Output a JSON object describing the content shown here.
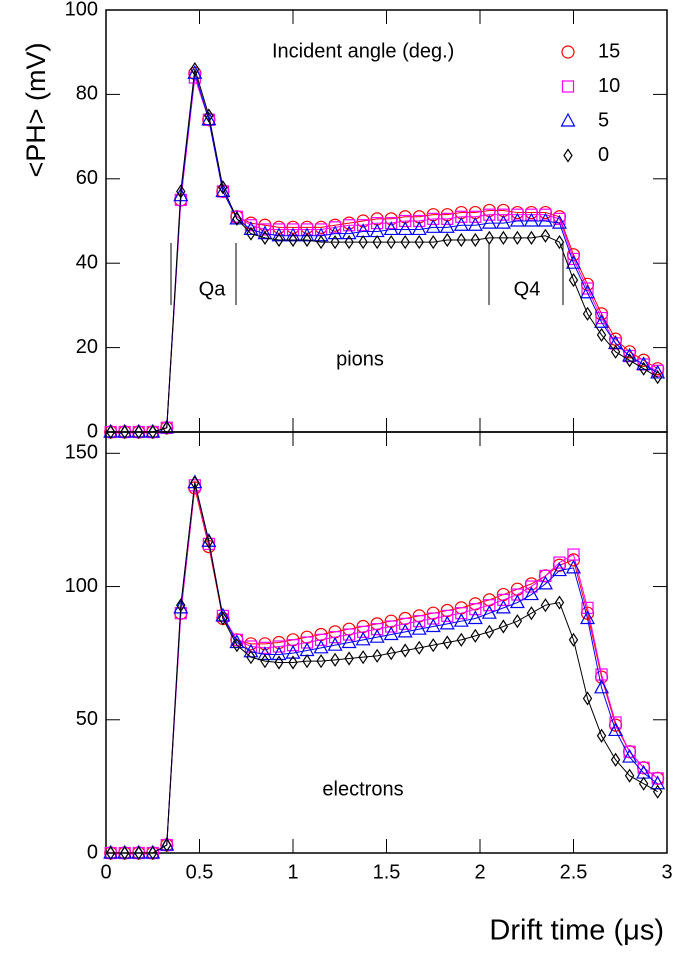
{
  "chart_data": [
    {
      "type": "line",
      "ylabel": "<PH> (mV)",
      "legend_title": "Incident angle (deg.)",
      "annotation": "pions",
      "regions": [
        "Qa",
        "Q4"
      ],
      "x": [
        0.025,
        0.1,
        0.175,
        0.25,
        0.325,
        0.4,
        0.475,
        0.55,
        0.625,
        0.7,
        0.775,
        0.85,
        0.925,
        1.0,
        1.075,
        1.15,
        1.225,
        1.3,
        1.375,
        1.45,
        1.525,
        1.6,
        1.675,
        1.75,
        1.825,
        1.9,
        1.975,
        2.05,
        2.125,
        2.2,
        2.275,
        2.35,
        2.425,
        2.5,
        2.575,
        2.65,
        2.725,
        2.8,
        2.875,
        2.95
      ],
      "xlim": [
        0,
        3
      ],
      "xticks": [
        0,
        0.5,
        1,
        1.5,
        2,
        2.5,
        3
      ],
      "ylim": [
        0,
        100
      ],
      "yticks": [
        0,
        20,
        40,
        60,
        80,
        100
      ],
      "series": [
        {
          "name": "15",
          "color": "#ff0000",
          "marker": "circle",
          "values": [
            0,
            0,
            0,
            0,
            1,
            55,
            85,
            74,
            57,
            51,
            49.5,
            49,
            48.5,
            48.5,
            48.5,
            48.5,
            49,
            49.5,
            50,
            50.5,
            50.5,
            51,
            51,
            51.5,
            51.5,
            52,
            52,
            52.5,
            52.5,
            52,
            52,
            52,
            51,
            42,
            35,
            28,
            22,
            19,
            17,
            15
          ]
        },
        {
          "name": "10",
          "color": "#ff00ff",
          "marker": "square",
          "values": [
            0,
            0,
            0,
            0,
            1,
            55,
            84,
            74,
            57,
            51,
            49,
            48,
            48,
            48,
            48,
            48,
            48.5,
            49,
            49,
            49.5,
            49.5,
            50,
            50,
            50.5,
            50.5,
            51,
            51,
            51.5,
            51.5,
            51.5,
            51.5,
            51.5,
            50.5,
            41,
            34,
            27,
            21,
            18,
            16,
            14.5
          ]
        },
        {
          "name": "5",
          "color": "#0000ff",
          "marker": "triangle",
          "values": [
            0,
            0,
            0,
            0,
            1,
            56,
            85,
            74,
            57,
            50.5,
            48,
            47,
            46.5,
            46.5,
            46.5,
            46.5,
            47,
            47,
            47.5,
            47.5,
            48,
            48,
            48,
            48.5,
            48.5,
            49,
            49,
            49.5,
            49.5,
            50,
            50,
            50,
            49.5,
            40,
            33,
            26,
            21,
            18,
            16,
            14
          ]
        },
        {
          "name": "0",
          "color": "#000000",
          "marker": "diamond",
          "values": [
            0,
            0,
            0,
            0,
            1,
            57,
            86,
            75,
            58,
            50.5,
            47,
            46,
            45.5,
            45.5,
            45.5,
            45,
            45,
            45,
            45,
            45,
            45,
            45,
            45,
            45,
            45.5,
            45.5,
            45.5,
            46,
            46,
            46,
            46,
            46.5,
            45,
            36,
            28,
            23,
            19,
            17,
            15,
            13
          ]
        }
      ]
    },
    {
      "type": "line",
      "xlabel": "Drift time (μs)",
      "annotation": "electrons",
      "x": [
        0.025,
        0.1,
        0.175,
        0.25,
        0.325,
        0.4,
        0.475,
        0.55,
        0.625,
        0.7,
        0.775,
        0.85,
        0.925,
        1.0,
        1.075,
        1.15,
        1.225,
        1.3,
        1.375,
        1.45,
        1.525,
        1.6,
        1.675,
        1.75,
        1.825,
        1.9,
        1.975,
        2.05,
        2.125,
        2.2,
        2.275,
        2.35,
        2.425,
        2.5,
        2.575,
        2.65,
        2.725,
        2.8,
        2.875,
        2.95
      ],
      "xlim": [
        0,
        3
      ],
      "xticks": [
        0,
        0.5,
        1,
        1.5,
        2,
        2.5,
        3
      ],
      "ylim": [
        0,
        158
      ],
      "yticks": [
        0,
        50,
        100,
        150
      ],
      "series": [
        {
          "name": "15",
          "color": "#ff0000",
          "marker": "circle",
          "values": [
            0,
            0,
            0,
            0,
            3,
            90,
            137,
            115,
            88,
            80,
            78.5,
            78.5,
            79,
            80,
            81,
            82,
            83,
            84,
            85,
            86,
            87,
            88,
            89,
            90,
            91,
            92,
            93.5,
            95,
            97,
            99,
            101,
            104,
            108,
            110,
            90,
            66,
            48,
            38,
            32,
            28
          ]
        },
        {
          "name": "10",
          "color": "#ff00ff",
          "marker": "square",
          "values": [
            0,
            0,
            0,
            0,
            3,
            90,
            138,
            116,
            89,
            80,
            77.5,
            77,
            77.5,
            78,
            79,
            80,
            81,
            82,
            83,
            84,
            85,
            86,
            87,
            88,
            89,
            90,
            91.5,
            93,
            95,
            97,
            100,
            104,
            109,
            112,
            92,
            67,
            49,
            38,
            32,
            28
          ]
        },
        {
          "name": "5",
          "color": "#0000ff",
          "marker": "triangle",
          "values": [
            0,
            0,
            0,
            0,
            3,
            92,
            139,
            117,
            89,
            79,
            75.5,
            74.5,
            74.5,
            75,
            76,
            77,
            78,
            79,
            80,
            81,
            82,
            83,
            84,
            85,
            86,
            87,
            88,
            90,
            92,
            94,
            97,
            101,
            106,
            107,
            88,
            62,
            46,
            36,
            30,
            26
          ]
        },
        {
          "name": "0",
          "color": "#000000",
          "marker": "diamond",
          "values": [
            0,
            0,
            0,
            0,
            3,
            93,
            139,
            117,
            88,
            78,
            73.5,
            72,
            71.5,
            71.5,
            72,
            72,
            72.5,
            73,
            73.5,
            74,
            75,
            76,
            77,
            78,
            79,
            80,
            81.5,
            83,
            85,
            87,
            90,
            93,
            94,
            80,
            58,
            44,
            35,
            29,
            26,
            23
          ]
        }
      ]
    }
  ]
}
